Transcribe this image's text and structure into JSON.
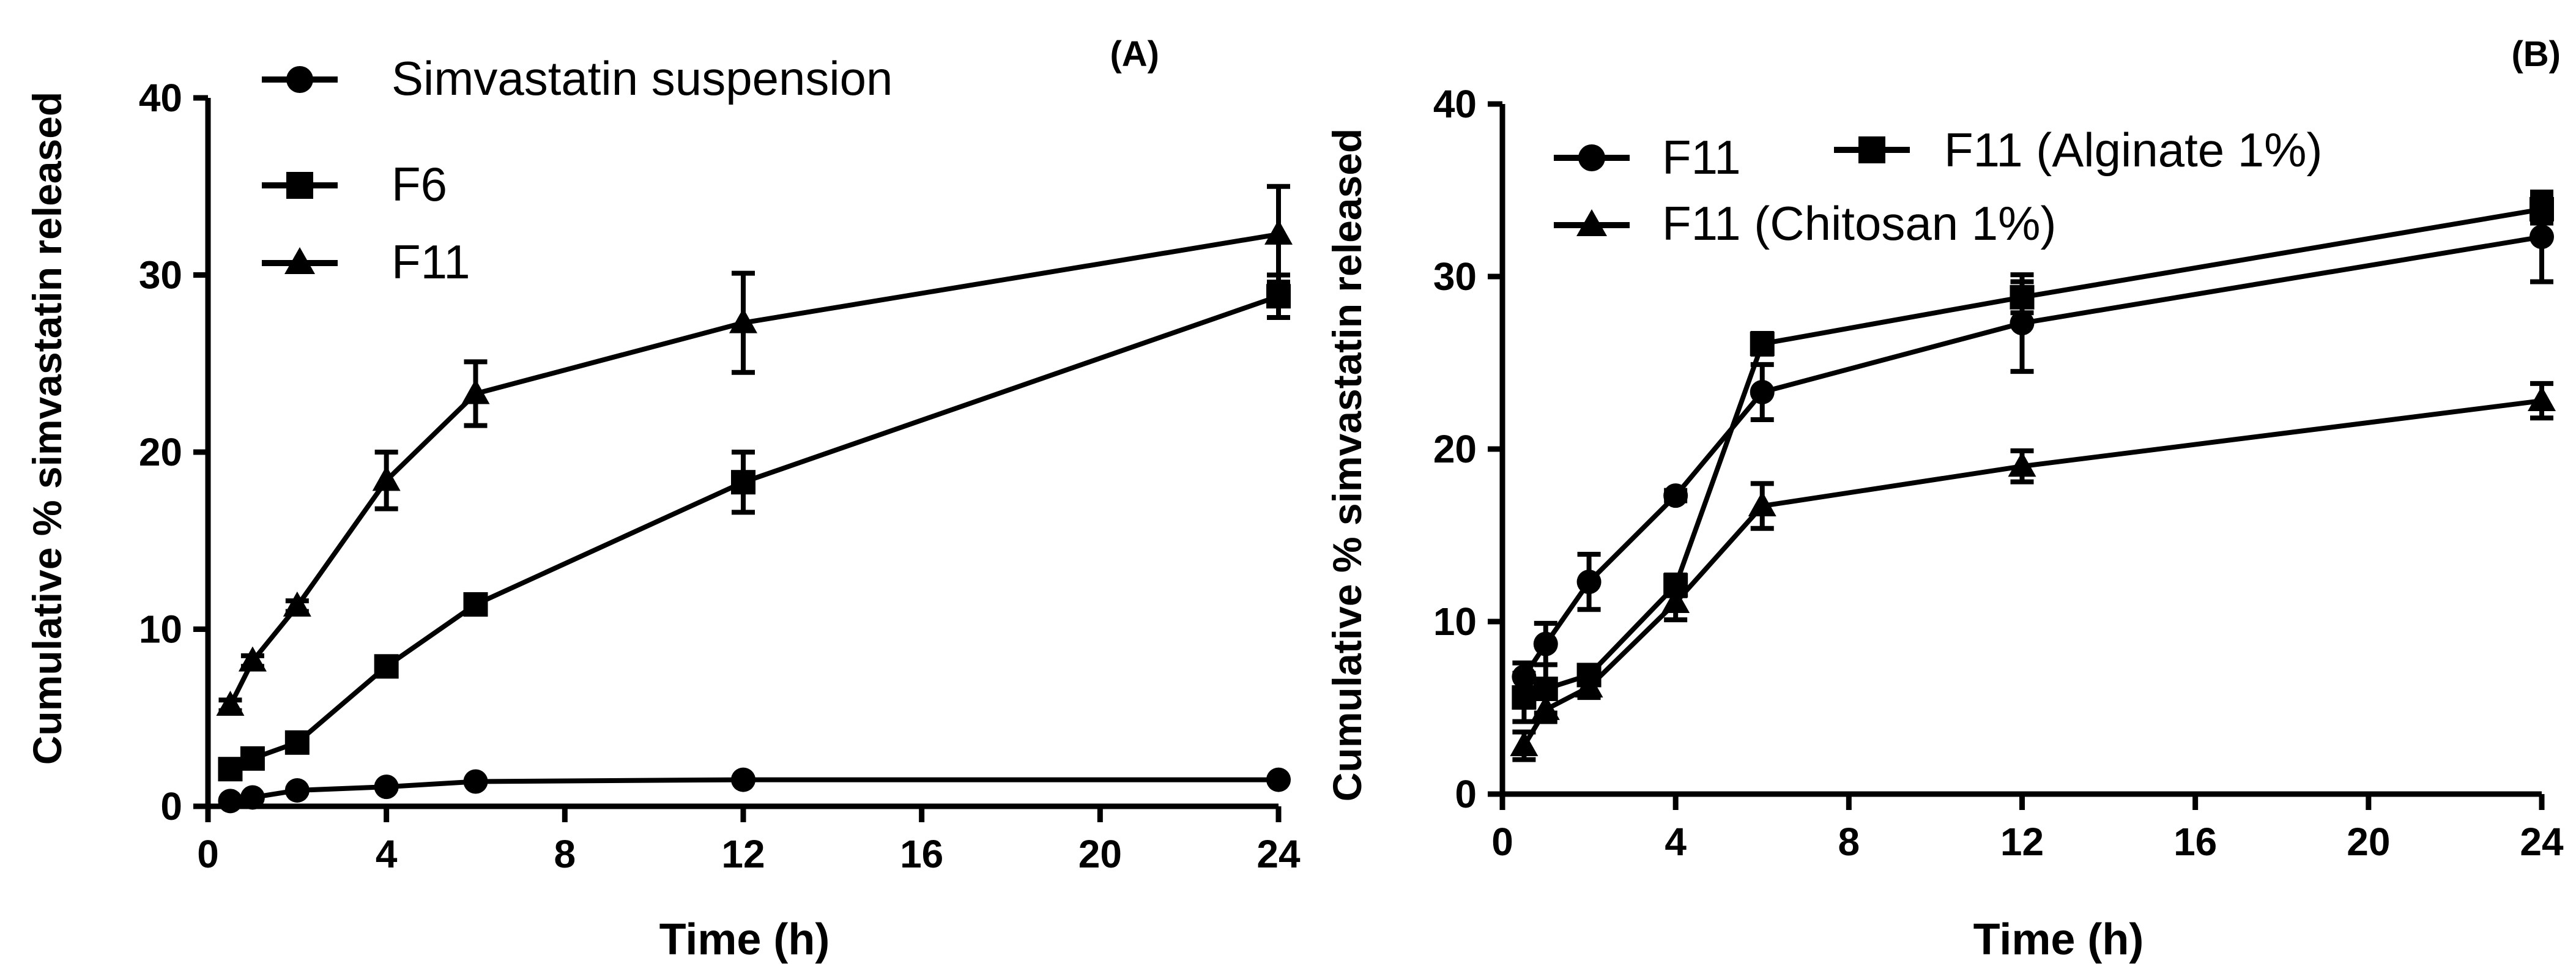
{
  "chart_data": [
    {
      "panel": "(A)",
      "type": "line",
      "xlabel": "Time (h)",
      "ylabel": "Cumulative % simvastatin released",
      "xlim": [
        0,
        24
      ],
      "ylim": [
        0,
        40
      ],
      "xticks": [
        0,
        4,
        8,
        12,
        16,
        20,
        24
      ],
      "yticks": [
        0,
        10,
        20,
        30,
        40
      ],
      "series": [
        {
          "name": "Simvastatin suspension",
          "marker": "circle",
          "x": [
            0.5,
            1,
            2,
            4,
            6,
            12,
            24
          ],
          "y": [
            0.3,
            0.5,
            0.9,
            1.1,
            1.4,
            1.5,
            1.5
          ],
          "err": [
            0.1,
            0.1,
            0.1,
            0.1,
            0.1,
            0.1,
            0.1
          ]
        },
        {
          "name": "F6",
          "marker": "square",
          "x": [
            0.5,
            1,
            2,
            4,
            6,
            12,
            24
          ],
          "y": [
            2.1,
            2.7,
            3.6,
            7.9,
            11.4,
            18.3,
            28.8
          ],
          "err": [
            0.2,
            0.2,
            0.2,
            0.3,
            0.3,
            1.7,
            1.2
          ]
        },
        {
          "name": "F11",
          "marker": "triangle",
          "x": [
            0.5,
            1,
            2,
            4,
            6,
            12,
            24
          ],
          "y": [
            5.7,
            8.2,
            11.3,
            18.4,
            23.3,
            27.3,
            32.3
          ],
          "err": [
            0.3,
            0.3,
            0.3,
            1.6,
            1.8,
            2.8,
            2.7
          ]
        }
      ]
    },
    {
      "panel": "(B)",
      "type": "line",
      "xlabel": "Time (h)",
      "ylabel": "Cumulative % simvastatin released",
      "xlim": [
        0,
        24
      ],
      "ylim": [
        0,
        40
      ],
      "xticks": [
        0,
        4,
        8,
        12,
        16,
        20,
        24
      ],
      "yticks": [
        0,
        10,
        20,
        30,
        40
      ],
      "series": [
        {
          "name": "F11",
          "marker": "circle",
          "x": [
            0.5,
            1,
            2,
            4,
            6,
            12,
            24
          ],
          "y": [
            6.8,
            8.7,
            12.3,
            17.3,
            23.3,
            27.3,
            32.3
          ],
          "err": [
            0.8,
            1.2,
            1.6,
            0.3,
            1.6,
            2.8,
            2.6
          ]
        },
        {
          "name": "F11 (Alginate 1%)",
          "marker": "square",
          "x": [
            0.5,
            1,
            2,
            4,
            6,
            12,
            24
          ],
          "y": [
            5.6,
            6.1,
            6.9,
            12.1,
            26.1,
            28.8,
            33.9
          ],
          "err": [
            1.4,
            1.4,
            0.5,
            0.6,
            0.6,
            0.9,
            0.8
          ]
        },
        {
          "name": "F11 (Chitosan 1%)",
          "marker": "triangle",
          "x": [
            0.5,
            1,
            2,
            4,
            6,
            12,
            24
          ],
          "y": [
            2.8,
            4.9,
            6.2,
            11.1,
            16.7,
            19.0,
            22.8
          ],
          "err": [
            0.8,
            0.7,
            0.6,
            1.0,
            1.3,
            0.9,
            1.0
          ]
        }
      ]
    }
  ]
}
